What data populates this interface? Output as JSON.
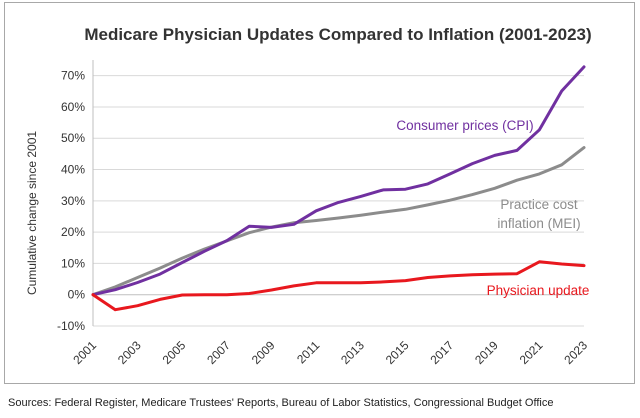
{
  "source_note": "Sources:  Federal Register, Medicare Trustees' Reports, Bureau of Labor Statistics, Congressional Budget Office",
  "chart_data": {
    "type": "line",
    "title": "Medicare Physician Updates Compared to Inflation (2001-2023)",
    "xlabel": "",
    "ylabel": "Cumulative change since 2001",
    "x": [
      2001,
      2002,
      2003,
      2004,
      2005,
      2006,
      2007,
      2008,
      2009,
      2010,
      2011,
      2012,
      2013,
      2014,
      2015,
      2016,
      2017,
      2018,
      2019,
      2020,
      2021,
      2022,
      2023
    ],
    "x_ticks": [
      2001,
      2003,
      2005,
      2007,
      2009,
      2011,
      2013,
      2015,
      2017,
      2019,
      2021,
      2023
    ],
    "x_tick_labels": [
      "2001",
      "2003",
      "2005",
      "2007",
      "2009",
      "2011",
      "2013",
      "2015",
      "2017",
      "2019",
      "2021",
      "2023"
    ],
    "xlim": [
      2001,
      2023
    ],
    "ylim": [
      -10,
      75
    ],
    "y_ticks": [
      -10,
      0,
      10,
      20,
      30,
      40,
      50,
      60,
      70
    ],
    "y_tick_labels": [
      "-10%",
      "0%",
      "10%",
      "20%",
      "30%",
      "40%",
      "50%",
      "60%",
      "70%"
    ],
    "grid": "horizontal",
    "series": [
      {
        "name": "Consumer prices (CPI)",
        "label_lines": [
          "Consumer prices (CPI)"
        ],
        "color": "#7030a0",
        "values": [
          0,
          1.6,
          3.9,
          6.6,
          10.3,
          13.9,
          17.3,
          21.9,
          21.5,
          22.5,
          26.8,
          29.5,
          31.4,
          33.5,
          33.7,
          35.4,
          38.6,
          41.9,
          44.5,
          46.1,
          52.7,
          65.1,
          72.8
        ]
      },
      {
        "name": "Practice cost inflation (MEI)",
        "label_lines": [
          "Practice cost",
          "inflation (MEI)"
        ],
        "color": "#8c8c8c",
        "values": [
          0,
          2.5,
          5.5,
          8.5,
          11.7,
          14.6,
          17.2,
          19.8,
          21.6,
          23.0,
          23.7,
          24.5,
          25.4,
          26.4,
          27.3,
          28.7,
          30.2,
          32.0,
          34.0,
          36.6,
          38.6,
          41.5,
          47.0
        ]
      },
      {
        "name": "Physician update",
        "label_lines": [
          "Physician update"
        ],
        "color": "#e8181e",
        "values": [
          0,
          -4.8,
          -3.5,
          -1.5,
          -0.1,
          0.0,
          0.0,
          0.4,
          1.5,
          2.8,
          3.8,
          3.8,
          3.8,
          4.1,
          4.5,
          5.5,
          6.0,
          6.4,
          6.6,
          6.7,
          10.5,
          9.8,
          9.3
        ]
      }
    ]
  }
}
